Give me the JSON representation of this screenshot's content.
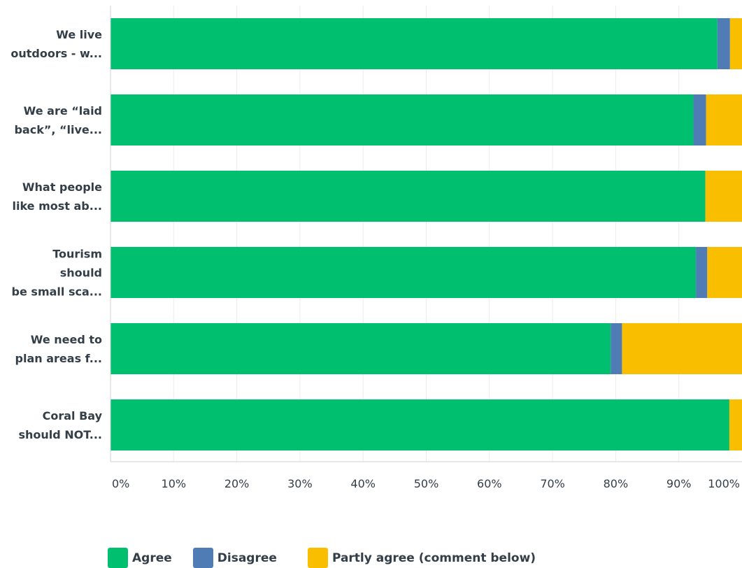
{
  "chart_data": {
    "type": "bar",
    "orientation": "horizontal",
    "stacked": true,
    "categories": [
      [
        "We live",
        "outdoors - w..."
      ],
      [
        "We are “laid",
        "back”, “live..."
      ],
      [
        "What people",
        "like most ab..."
      ],
      [
        "Tourism",
        "should",
        "be small sca..."
      ],
      [
        "We need to",
        "plan areas f..."
      ],
      [
        "Coral Bay",
        "should NOT..."
      ]
    ],
    "series": [
      {
        "name": "Agree",
        "color": "#00bf6f",
        "values": [
          96.1,
          92.3,
          94.2,
          92.7,
          79.2,
          98.0
        ]
      },
      {
        "name": "Disagree",
        "color": "#507cb6",
        "values": [
          2.0,
          2.0,
          0.0,
          1.8,
          1.8,
          0.0
        ]
      },
      {
        "name": "Partly agree (comment below)",
        "color": "#f9be00",
        "values": [
          1.9,
          5.7,
          5.8,
          5.5,
          19.0,
          2.0
        ]
      }
    ],
    "x_ticks": [
      "0%",
      "10%",
      "20%",
      "30%",
      "40%",
      "50%",
      "60%",
      "70%",
      "80%",
      "90%",
      "100%"
    ],
    "xlim": [
      0,
      100
    ],
    "grid": true,
    "legend_position": "bottom"
  }
}
